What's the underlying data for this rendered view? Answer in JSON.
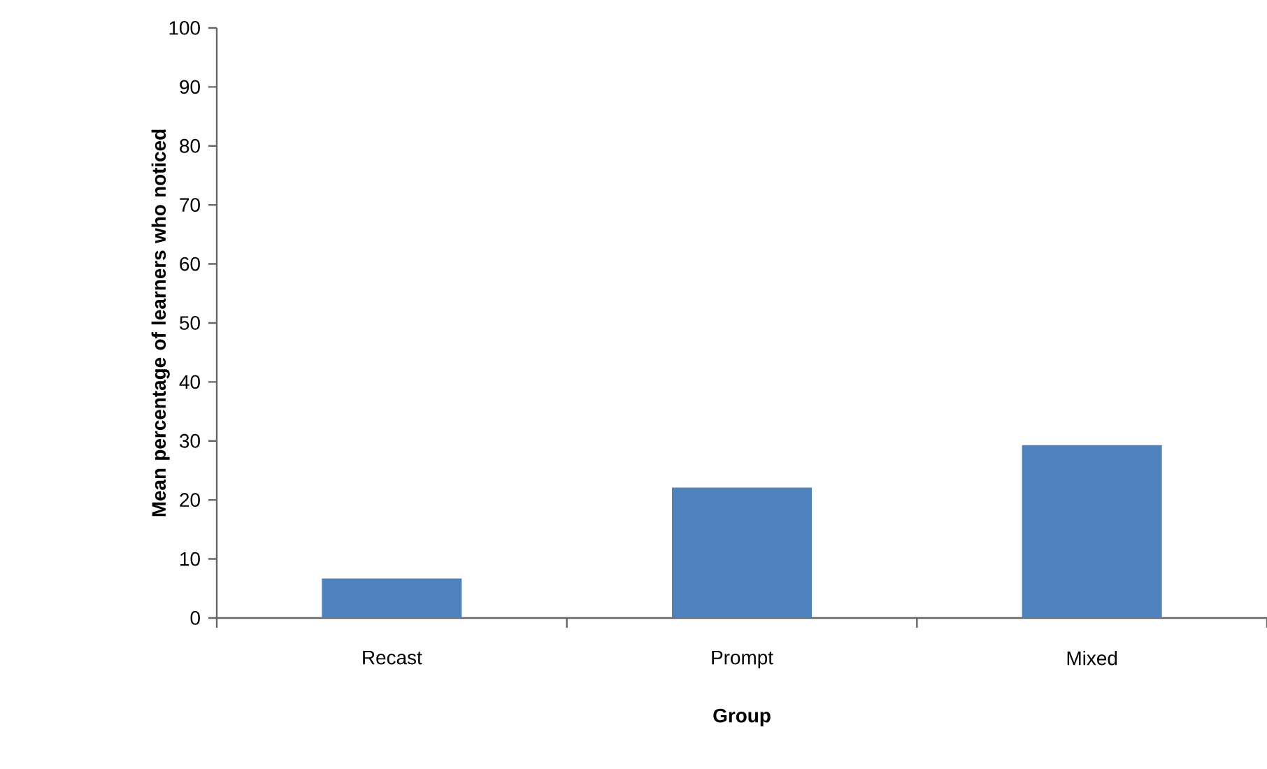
{
  "chart_data": {
    "type": "bar",
    "xlabel": "Group",
    "ylabel": "Mean percentage of learners who noticed",
    "categories": [
      "Recast",
      "Prompt",
      "Mixed"
    ],
    "values": [
      6.7,
      22.1,
      29.3
    ],
    "color": "#4f81bd",
    "ylim": [
      0,
      100
    ],
    "yticks": [
      0,
      10,
      20,
      30,
      40,
      50,
      60,
      70,
      80,
      90,
      100
    ],
    "grid": false
  }
}
